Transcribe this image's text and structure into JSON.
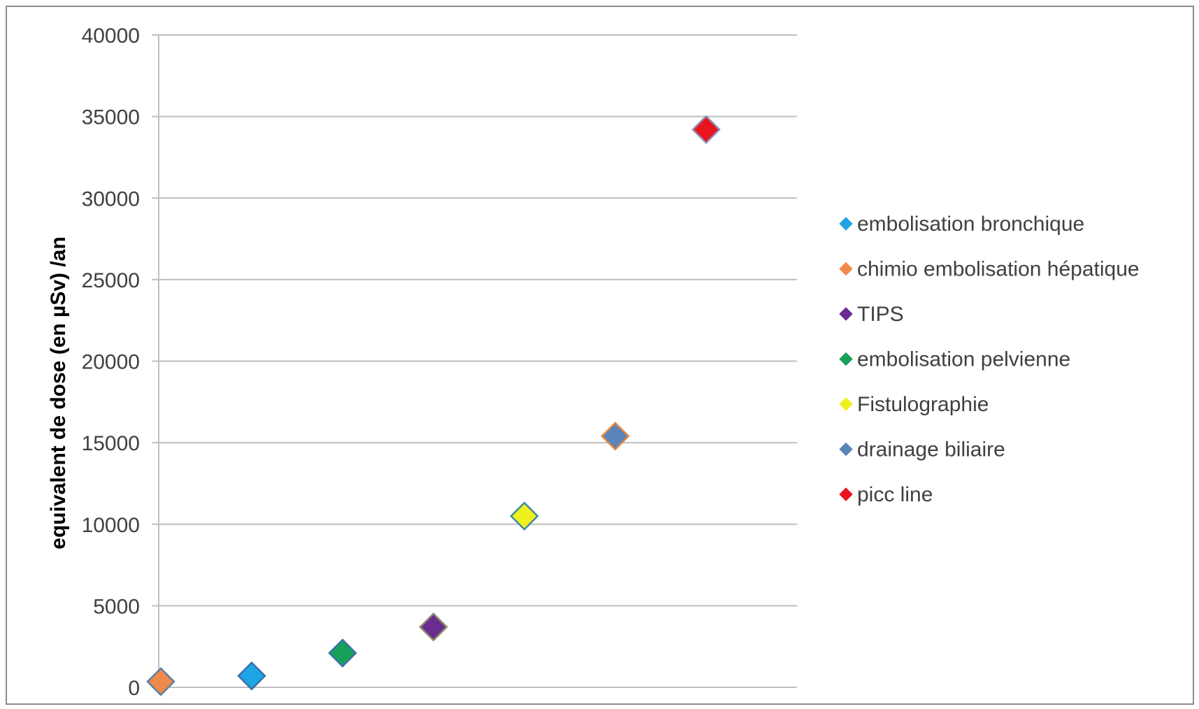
{
  "chart_data": {
    "type": "scatter",
    "title": "",
    "xlabel": "",
    "ylabel": "equivalent de dose (en µSv) /an",
    "ylim": [
      0,
      40000
    ],
    "yticks": [
      "0",
      "5000",
      "10000",
      "15000",
      "20000",
      "25000",
      "30000",
      "35000",
      "40000"
    ],
    "grid": "horizontal",
    "legend_position": "right",
    "series": [
      {
        "name": "embolisation bronchique",
        "color": "#1ea5e6",
        "edge": "#3c6fa8",
        "points": [
          {
            "x": 2,
            "y": 700
          }
        ]
      },
      {
        "name": "chimio embolisation hépatique",
        "color": "#f08a4a",
        "edge": "#5b7fa8",
        "points": [
          {
            "x": 1,
            "y": 350
          }
        ]
      },
      {
        "name": "TIPS",
        "color": "#6a2c91",
        "edge": "#8c8c6a",
        "points": [
          {
            "x": 4,
            "y": 3700
          }
        ]
      },
      {
        "name": "embolisation pelvienne",
        "color": "#16a05a",
        "edge": "#3c6fa8",
        "points": [
          {
            "x": 3,
            "y": 2100
          }
        ]
      },
      {
        "name": "Fistulographie",
        "color": "#f0f01e",
        "edge": "#3c8ca0",
        "points": [
          {
            "x": 5,
            "y": 10500
          }
        ]
      },
      {
        "name": "drainage biliaire",
        "color": "#5b84b8",
        "edge": "#e8873c",
        "points": [
          {
            "x": 6,
            "y": 15400
          }
        ]
      },
      {
        "name": "picc line",
        "color": "#e8141e",
        "edge": "#8c8cb4",
        "points": [
          {
            "x": 7,
            "y": 34200
          }
        ]
      }
    ]
  }
}
